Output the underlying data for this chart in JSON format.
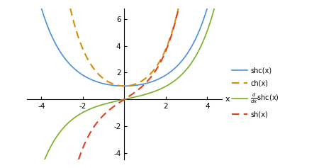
{
  "xlim": [
    -4.7,
    4.7
  ],
  "ylim": [
    -4.5,
    6.8
  ],
  "xticks": [
    -4,
    -2,
    2,
    4
  ],
  "yticks": [
    -4,
    -2,
    2,
    4,
    6
  ],
  "xlabel": "x",
  "line_colors": {
    "shc": "#4A90D9",
    "ch": "#D4900A",
    "dshc": "#7AAF2A",
    "sh": "#E04020"
  },
  "figsize": [
    4.74,
    2.37
  ],
  "dpi": 100
}
